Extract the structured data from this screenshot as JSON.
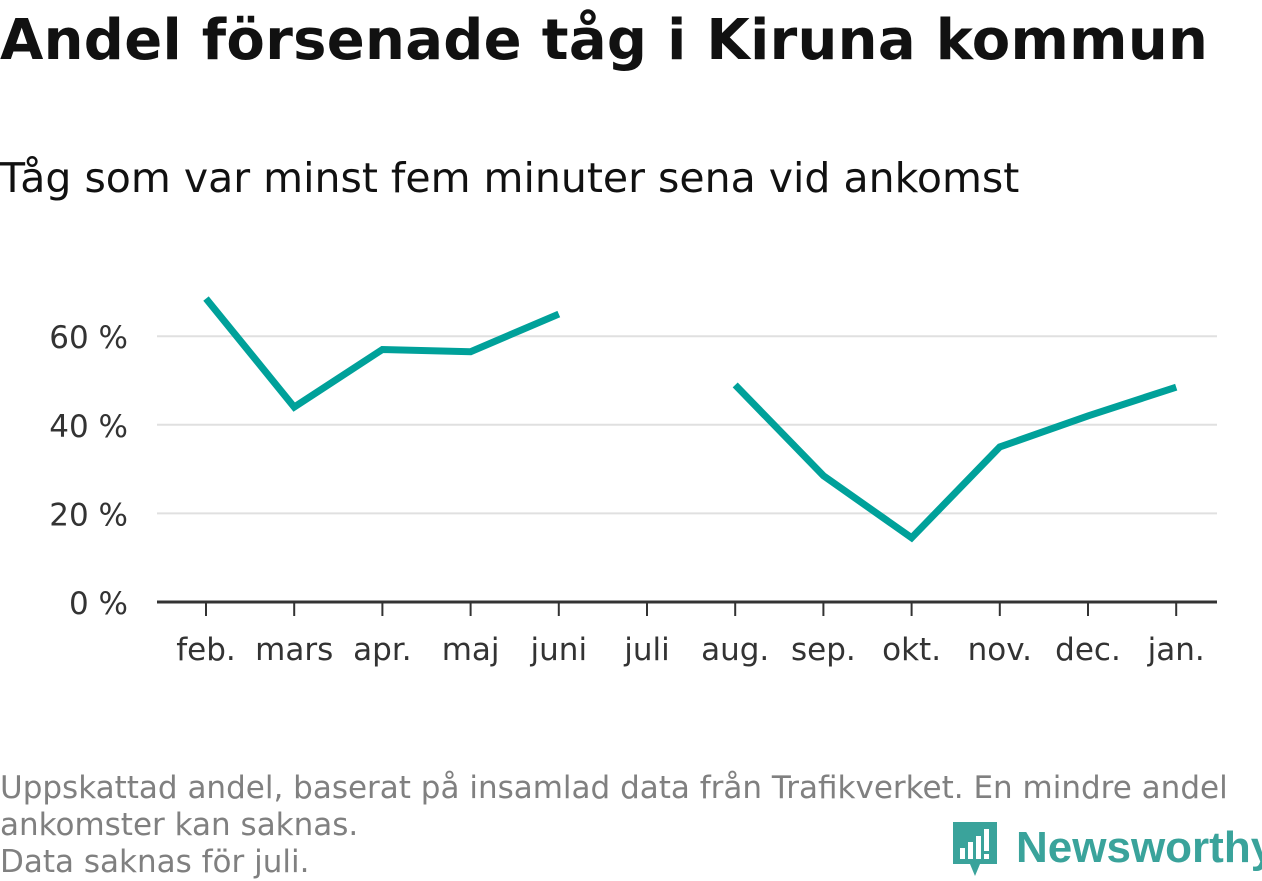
{
  "title": "Andel försenade tåg i Kiruna kommun",
  "subtitle": "Tåg som var minst fem minuter sena vid ankomst",
  "footnote": {
    "line1": "Uppskattad andel, baserat på insamlad data från Trafikverket. En mindre andel",
    "line2": "ankomster kan saknas.",
    "line3": "Data saknas för juli."
  },
  "brand": {
    "name": "Newsworthy",
    "icon": "newsworthy-logo-icon",
    "color": "#3aa39b"
  },
  "colors": {
    "series": "#00a19a",
    "grid": "#e0e0e0",
    "axis": "#333333",
    "text": "#333333"
  },
  "chart_data": {
    "type": "line",
    "title": "Andel försenade tåg i Kiruna kommun",
    "subtitle": "Tåg som var minst fem minuter sena vid ankomst",
    "categories": [
      "feb.",
      "mars",
      "apr.",
      "maj",
      "juni",
      "juli",
      "aug.",
      "sep.",
      "okt.",
      "nov.",
      "dec.",
      "jan."
    ],
    "series": [
      {
        "values": [
          68.5,
          44,
          57,
          56.5,
          65,
          null,
          49,
          28.5,
          14.5,
          35,
          42,
          48.5
        ]
      }
    ],
    "yticks": [
      0,
      20,
      40,
      60
    ],
    "ytick_labels": [
      "0 %",
      "20 %",
      "40 %",
      "60 %"
    ],
    "ylim": [
      0,
      70
    ],
    "grid": true,
    "legend": "none"
  }
}
